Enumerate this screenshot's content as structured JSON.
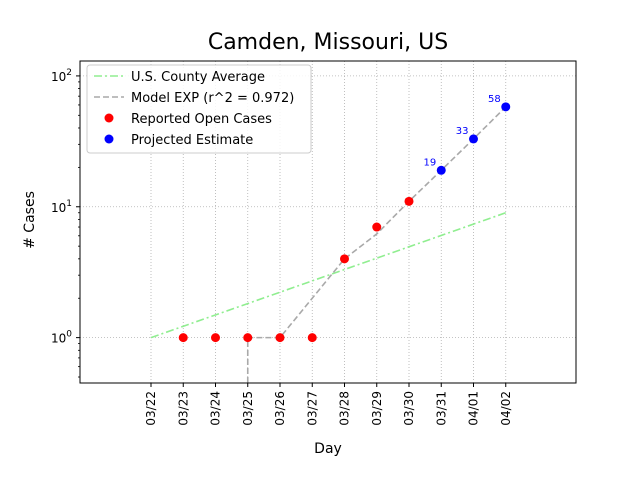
{
  "chart_data": {
    "type": "line",
    "title": "Camden, Missouri, US",
    "xlabel": "Day",
    "ylabel": "# Cases",
    "y_scale": "log",
    "ylim": [
      0.45,
      130
    ],
    "y_ticks": [
      {
        "value": 1,
        "base": "10",
        "exp": "0"
      },
      {
        "value": 10,
        "base": "10",
        "exp": "1"
      },
      {
        "value": 100,
        "base": "10",
        "exp": "2"
      }
    ],
    "categories": [
      "03/22",
      "03/23",
      "03/24",
      "03/25",
      "03/26",
      "03/27",
      "03/28",
      "03/29",
      "03/30",
      "03/31",
      "04/01",
      "04/02"
    ],
    "grid": true,
    "legend_position": "top-left",
    "series": [
      {
        "name": "U.S. County Average",
        "style": "dash-dot line",
        "color": "#90ee90",
        "x": [
          "03/22",
          "04/02"
        ],
        "values": [
          1.0,
          9.0
        ]
      },
      {
        "name": "Model EXP (r^2 = 0.972)",
        "style": "dashed line",
        "color": "#a9a9a9",
        "x": [
          "03/25",
          "03/25",
          "03/26",
          "03/27",
          "03/28",
          "03/29",
          "03/30",
          "03/31",
          "04/01",
          "04/02"
        ],
        "values": [
          0.01,
          1.0,
          1.0,
          2.0,
          4.0,
          6.2,
          11.0,
          19.0,
          33.0,
          58.0
        ]
      },
      {
        "name": "Reported Open Cases",
        "style": "markers",
        "color": "#ff0000",
        "x": [
          "03/23",
          "03/24",
          "03/25",
          "03/26",
          "03/27",
          "03/28",
          "03/29",
          "03/30"
        ],
        "values": [
          1,
          1,
          1,
          1,
          1,
          4,
          7,
          11
        ]
      },
      {
        "name": "Projected Estimate",
        "style": "markers",
        "color": "#0000ff",
        "x": [
          "03/31",
          "04/01",
          "04/02"
        ],
        "values": [
          19,
          33,
          58
        ],
        "labels": [
          "19",
          "33",
          "58"
        ]
      }
    ]
  }
}
